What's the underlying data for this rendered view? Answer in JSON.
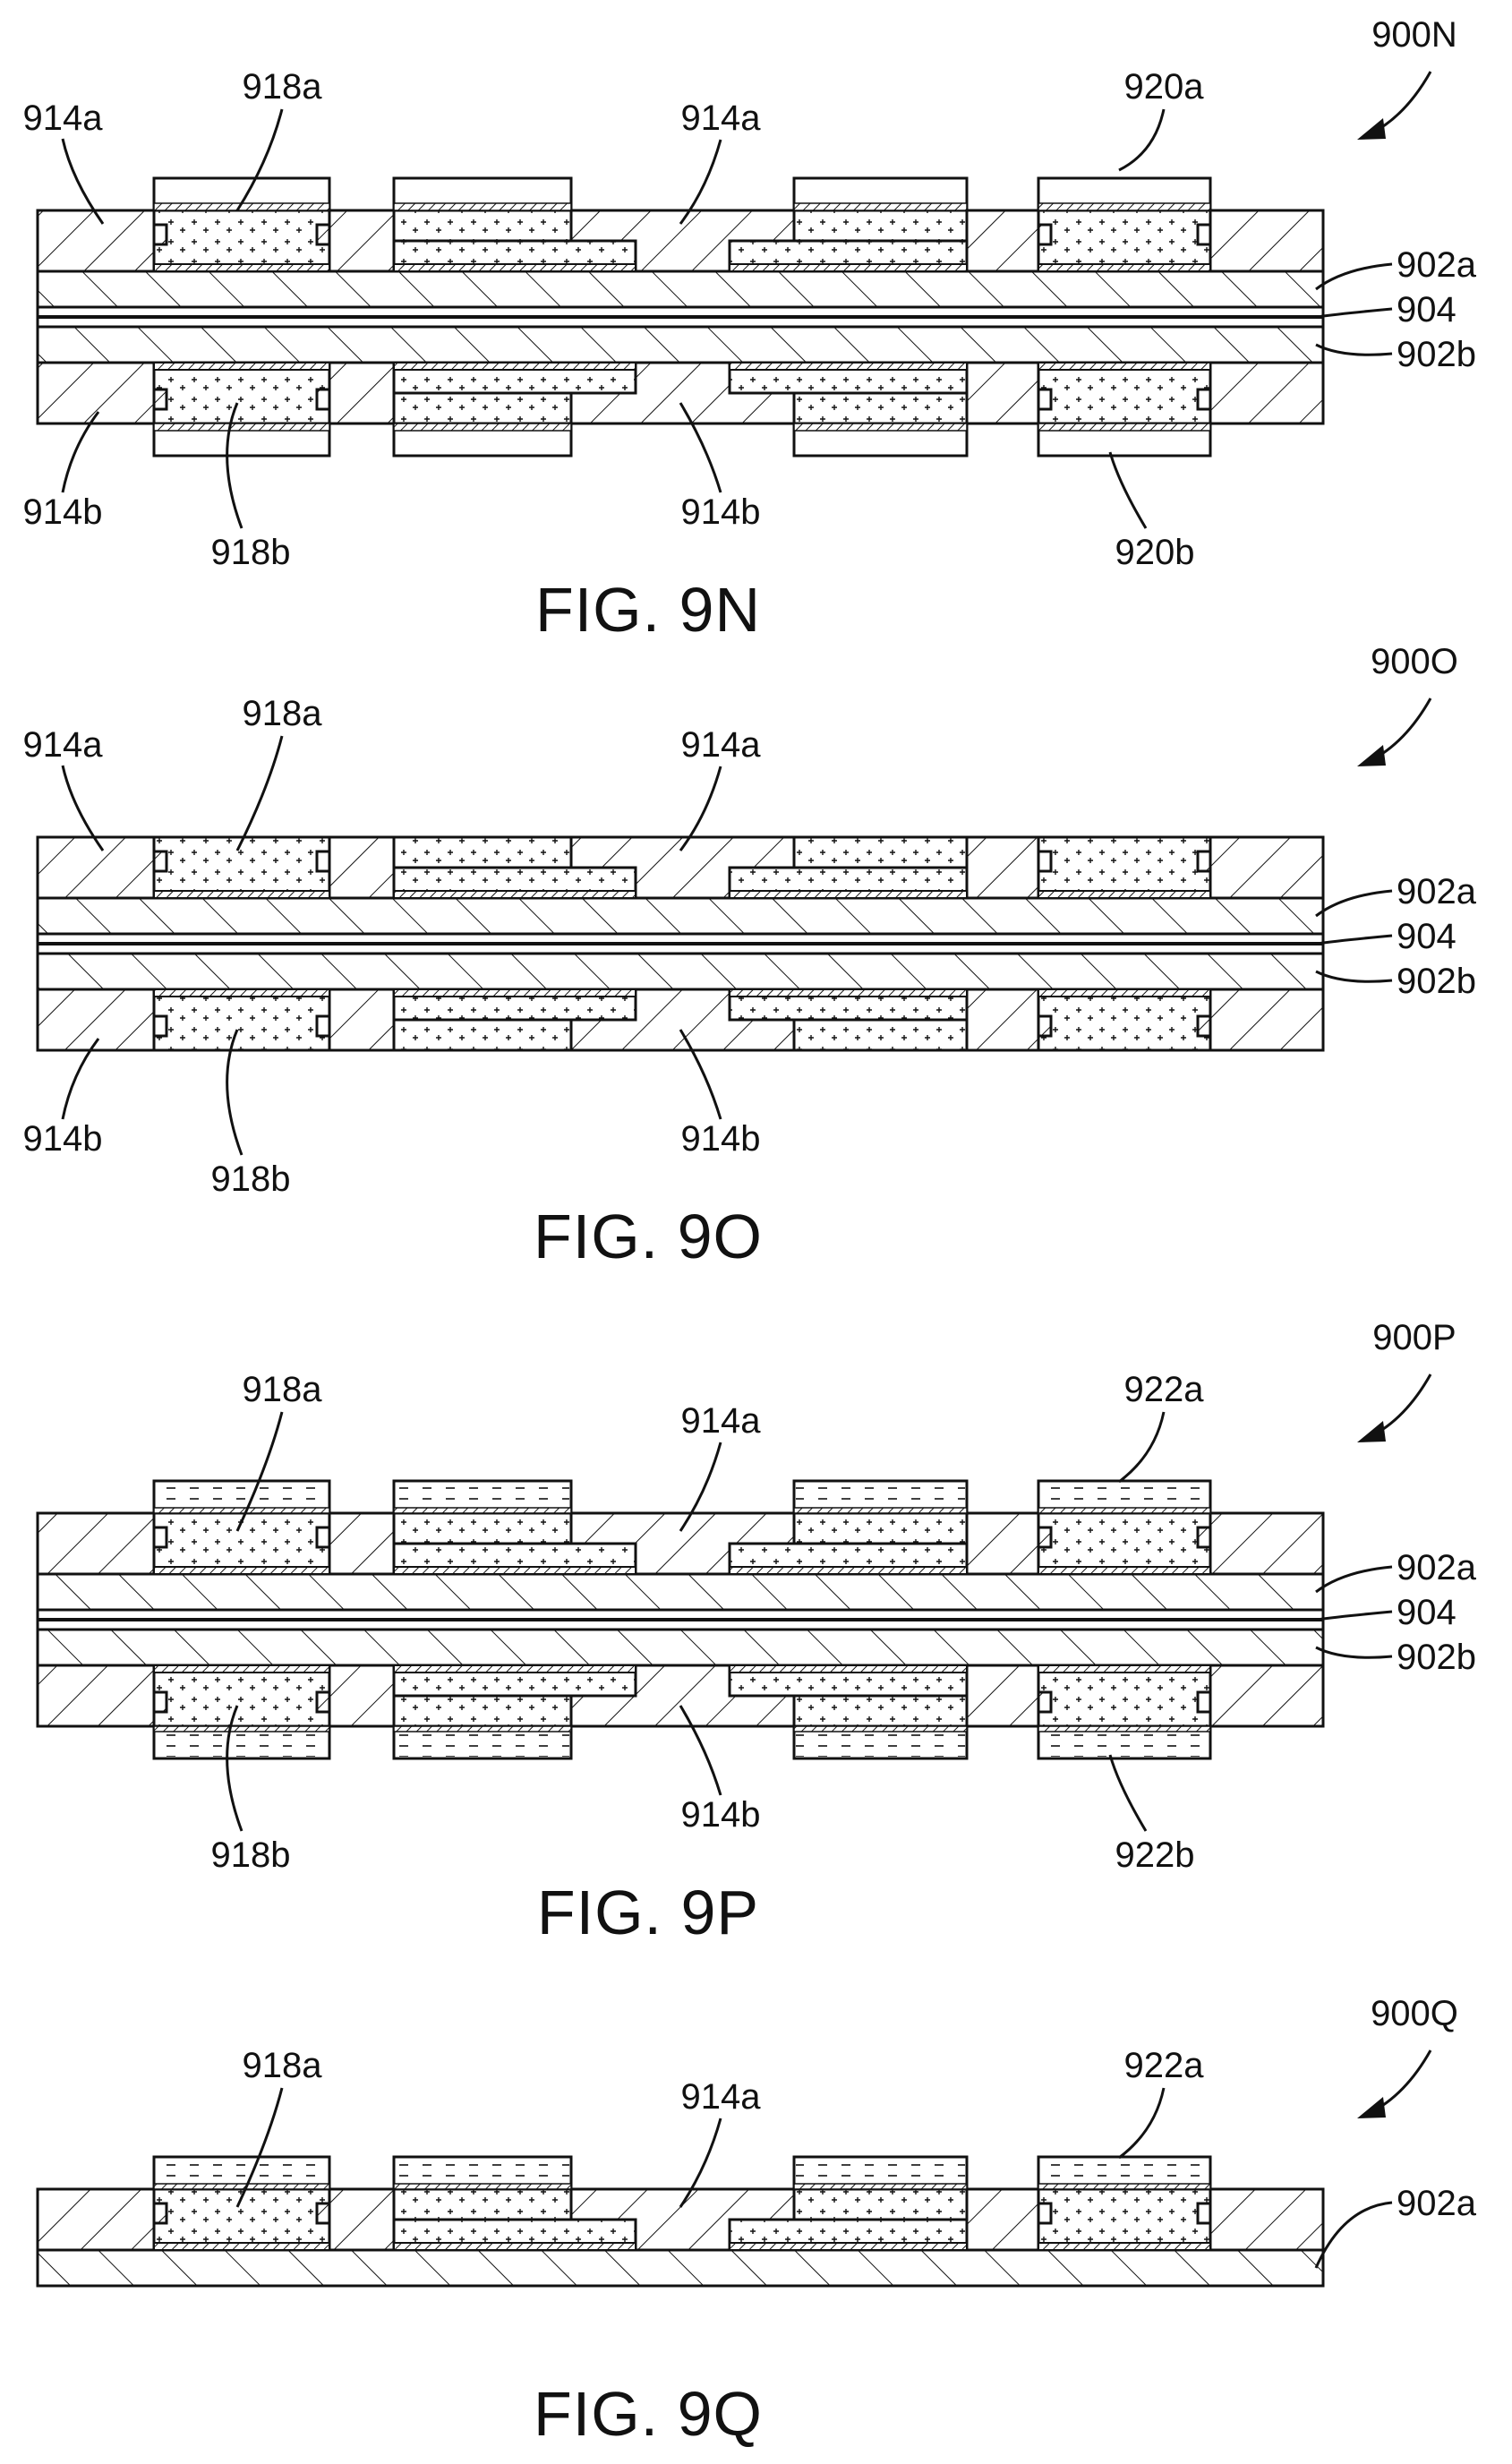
{
  "figures": [
    {
      "id": "9N",
      "caption": "FIG. 9N",
      "ref": "900N",
      "double_sided": true,
      "top_cap": "metal",
      "labels": {
        "top": [
          "914a",
          "918a",
          "914a",
          "920a"
        ],
        "bottom": [
          "914b",
          "918b",
          "914b",
          "920b"
        ],
        "side": [
          "902a",
          "904",
          "902b"
        ]
      }
    },
    {
      "id": "9O",
      "caption": "FIG. 9O",
      "ref": "900O",
      "double_sided": true,
      "top_cap": "none",
      "labels": {
        "top": [
          "914a",
          "918a",
          "914a"
        ],
        "bottom": [
          "914b",
          "918b",
          "914b"
        ],
        "side": [
          "902a",
          "904",
          "902b"
        ]
      }
    },
    {
      "id": "9P",
      "caption": "FIG. 9P",
      "ref": "900P",
      "double_sided": true,
      "top_cap": "dielectric",
      "labels": {
        "top": [
          "918a",
          "914a",
          "922a"
        ],
        "bottom": [
          "918b",
          "914b",
          "922b"
        ],
        "side": [
          "902a",
          "904",
          "902b"
        ]
      }
    },
    {
      "id": "9Q",
      "caption": "FIG. 9Q",
      "ref": "900Q",
      "double_sided": false,
      "top_cap": "dielectric",
      "labels": {
        "top": [
          "918a",
          "914a",
          "922a"
        ],
        "bottom": [],
        "side": [
          "902a"
        ]
      }
    }
  ],
  "colors": {
    "ink": "#111111",
    "paper": "#ffffff"
  },
  "icons": {
    "reference_arrow": "curved-arrow-icon"
  }
}
